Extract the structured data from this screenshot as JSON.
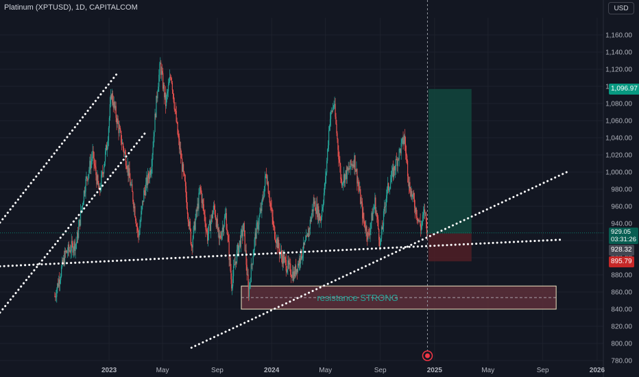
{
  "header": {
    "symbol_title": "Platinum (XPTUSD), 1D, CAPITALCOM",
    "currency_button": "USD"
  },
  "colors": {
    "background": "#131722",
    "up_candle": "#26a69a",
    "down_candle": "#ef5350",
    "trend_line": "#ffffff",
    "zone_fill": "#5d2f3a",
    "zone_border": "#f2e7c4",
    "target_fill": "#12463d",
    "stop_fill": "#4d1e26",
    "badge_target": "#089981",
    "badge_stop": "#c62828",
    "badge_current": "#085e52",
    "badge_entry": "#434651"
  },
  "chart_data": {
    "type": "candlestick",
    "title": "Platinum (XPTUSD), 1D, CAPITALCOM",
    "y_axis": {
      "unit": "USD",
      "range": [
        780,
        1180
      ],
      "ticks": [
        "1,160.00",
        "1,140.00",
        "1,120.00",
        "1,100.00",
        "1,080.00",
        "1,060.00",
        "1,040.00",
        "1,020.00",
        "1,000.00",
        "980.00",
        "960.00",
        "940.00",
        "920.00",
        "900.00",
        "880.00",
        "860.00",
        "840.00",
        "820.00",
        "800.00",
        "780.00"
      ]
    },
    "x_axis": {
      "range": [
        "2022-05-01",
        "2026-01-15"
      ],
      "ticks": [
        {
          "label": "2023",
          "date": "2023-01-01"
        },
        {
          "label": "May",
          "date": "2023-05-01"
        },
        {
          "label": "Sep",
          "date": "2023-09-01"
        },
        {
          "label": "2024",
          "date": "2024-01-01"
        },
        {
          "label": "May",
          "date": "2024-05-01"
        },
        {
          "label": "Sep",
          "date": "2024-09-01"
        },
        {
          "label": "2025",
          "date": "2025-01-01"
        },
        {
          "label": "May",
          "date": "2025-05-01"
        },
        {
          "label": "Sep",
          "date": "2025-09-01"
        },
        {
          "label": "2026",
          "date": "2026-01-01"
        }
      ]
    },
    "price_path": [
      [
        "2022-09-01",
        855
      ],
      [
        "2022-09-25",
        905
      ],
      [
        "2022-10-20",
        918
      ],
      [
        "2022-11-08",
        985
      ],
      [
        "2022-11-25",
        1020
      ],
      [
        "2022-12-10",
        975
      ],
      [
        "2022-12-28",
        1035
      ],
      [
        "2023-01-06",
        1092
      ],
      [
        "2023-01-25",
        1045
      ],
      [
        "2023-02-10",
        1010
      ],
      [
        "2023-02-25",
        965
      ],
      [
        "2023-03-08",
        925
      ],
      [
        "2023-03-20",
        975
      ],
      [
        "2023-04-05",
        1005
      ],
      [
        "2023-04-20",
        1100
      ],
      [
        "2023-04-26",
        1125
      ],
      [
        "2023-05-08",
        1080
      ],
      [
        "2023-05-20",
        1115
      ],
      [
        "2023-06-05",
        1040
      ],
      [
        "2023-06-20",
        985
      ],
      [
        "2023-07-05",
        915
      ],
      [
        "2023-07-25",
        980
      ],
      [
        "2023-08-10",
        925
      ],
      [
        "2023-08-25",
        960
      ],
      [
        "2023-09-05",
        920
      ],
      [
        "2023-09-20",
        950
      ],
      [
        "2023-10-03",
        870
      ],
      [
        "2023-10-15",
        905
      ],
      [
        "2023-10-30",
        935
      ],
      [
        "2023-11-10",
        860
      ],
      [
        "2023-11-25",
        925
      ],
      [
        "2023-12-10",
        960
      ],
      [
        "2023-12-20",
        1000
      ],
      [
        "2024-01-05",
        935
      ],
      [
        "2024-01-20",
        905
      ],
      [
        "2024-02-05",
        890
      ],
      [
        "2024-02-20",
        880
      ],
      [
        "2024-03-05",
        900
      ],
      [
        "2024-03-20",
        920
      ],
      [
        "2024-04-05",
        965
      ],
      [
        "2024-04-20",
        945
      ],
      [
        "2024-05-01",
        990
      ],
      [
        "2024-05-10",
        1060
      ],
      [
        "2024-05-20",
        1080
      ],
      [
        "2024-06-05",
        990
      ],
      [
        "2024-06-20",
        1000
      ],
      [
        "2024-07-05",
        1015
      ],
      [
        "2024-07-25",
        945
      ],
      [
        "2024-08-05",
        925
      ],
      [
        "2024-08-20",
        965
      ],
      [
        "2024-09-01",
        915
      ],
      [
        "2024-09-15",
        975
      ],
      [
        "2024-09-30",
        1000
      ],
      [
        "2024-10-12",
        1020
      ],
      [
        "2024-10-25",
        1040
      ],
      [
        "2024-11-05",
        985
      ],
      [
        "2024-11-18",
        960
      ],
      [
        "2024-12-01",
        935
      ],
      [
        "2024-12-10",
        955
      ],
      [
        "2024-12-16",
        929
      ]
    ],
    "trend_lines": [
      {
        "from": [
          "2022-05-01",
          941
        ],
        "to": [
          "2023-01-22",
          1117
        ]
      },
      {
        "from": [
          "2022-05-01",
          836
        ],
        "to": [
          "2023-03-22",
          1045
        ]
      },
      {
        "from": [
          "2022-05-01",
          890
        ],
        "to": [
          "2025-10-10",
          921
        ]
      },
      {
        "from": [
          "2023-07-05",
          795
        ],
        "to": [
          "2025-10-25",
          1000
        ]
      }
    ],
    "zones": [
      {
        "label": "resistance STRONG",
        "from": "2023-10-25",
        "to": "2025-10-01",
        "low": 840,
        "high": 867
      }
    ],
    "position": {
      "from": "2024-12-18",
      "to": "2025-03-25",
      "entry": 928.32,
      "target": 1096.97,
      "stop": 895.79
    },
    "current_marker_date": "2024-12-16",
    "price_labels": [
      {
        "value": 1096.97,
        "text": "1,096.97",
        "kind": "target"
      },
      {
        "value": 929.05,
        "text": "929.05",
        "countdown": "03:31:26",
        "kind": "current"
      },
      {
        "value": 928.32,
        "text": "928.32",
        "kind": "entry"
      },
      {
        "value": 895.79,
        "text": "895.79",
        "kind": "stop"
      }
    ]
  }
}
